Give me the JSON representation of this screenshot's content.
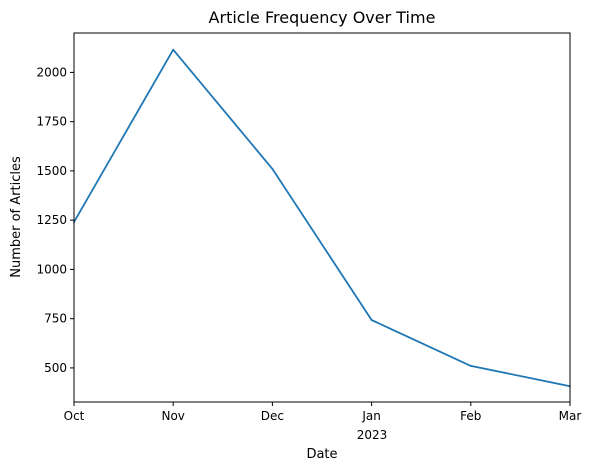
{
  "chart_data": {
    "type": "line",
    "title": "Article Frequency Over Time",
    "xlabel": "Date",
    "ylabel": "Number of Articles",
    "x": [
      "2022-10",
      "2022-11",
      "2022-12",
      "2023-01",
      "2023-02",
      "2023-03"
    ],
    "x_tick_labels": [
      "Oct",
      "Nov",
      "Dec",
      "Jan",
      "Feb",
      "Mar"
    ],
    "x_year_label": "2023",
    "series": [
      {
        "values": [
          1240,
          2115,
          1510,
          743,
          510,
          407
        ],
        "color": "#1f77b4"
      }
    ],
    "yticks": [
      500,
      750,
      1000,
      1250,
      1500,
      1750,
      2000
    ],
    "ylim": [
      327,
      2200
    ],
    "xlim": [
      "2022-10",
      "2023-03"
    ],
    "grid": false,
    "legend": "none"
  }
}
